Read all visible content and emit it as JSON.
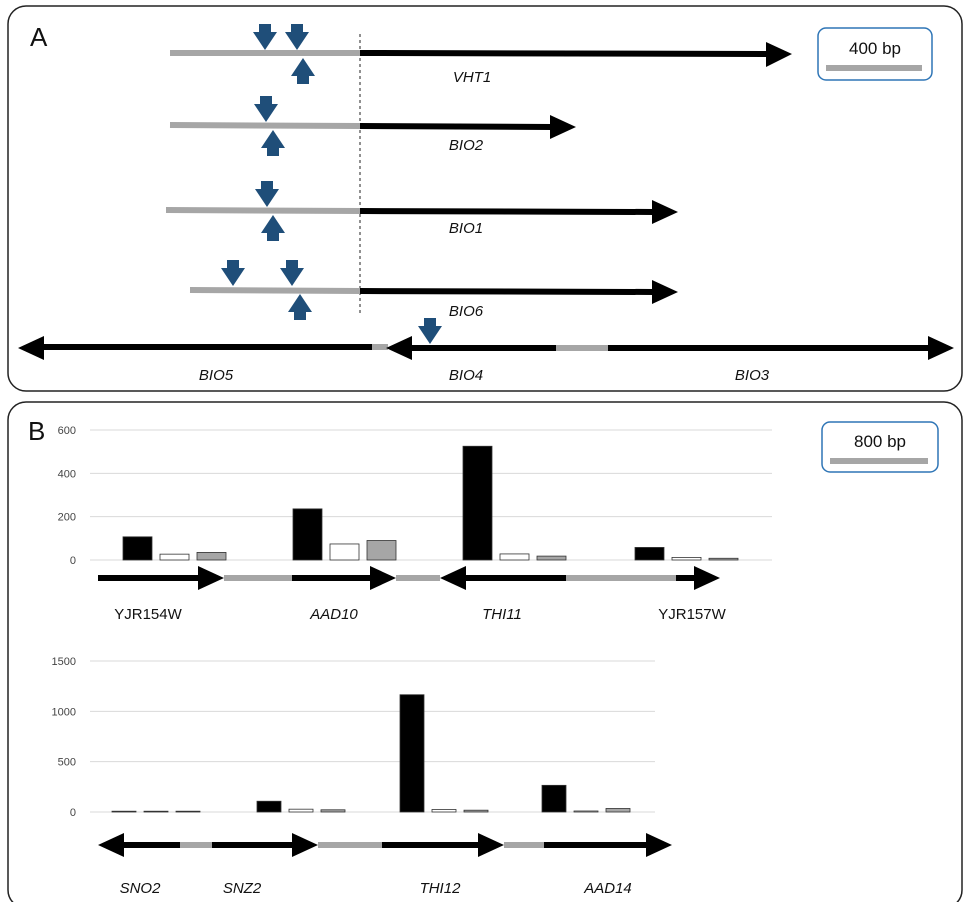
{
  "panel_a": {
    "letter": "A",
    "scale_label": "400 bp",
    "gene_labels": {
      "vht1": "VHT1",
      "bio2": "BIO2",
      "bio1": "BIO1",
      "bio6": "BIO6",
      "bio5": "BIO5",
      "bio4": "BIO4",
      "bio3": "BIO3"
    }
  },
  "panel_b": {
    "letter": "B",
    "scale_label": "800 bp",
    "gene_labels": {
      "yjr154w": "YJR154W",
      "aad10": "AAD10",
      "thi11": "THI11",
      "yjr157w": "YJR157W",
      "sno2": "SNO2",
      "snz2": "SNZ2",
      "thi12": "THI12",
      "aad14": "AAD14"
    }
  },
  "chart_data": [
    {
      "type": "bar",
      "ylim": [
        0,
        600
      ],
      "yticks": [
        0,
        200,
        400,
        600
      ],
      "grid": true,
      "series_colors": [
        "#000000",
        "#ffffff",
        "#a6a6a6"
      ],
      "groups": [
        {
          "values": [
            107,
            27,
            35
          ]
        },
        {
          "values": [
            236,
            74,
            90
          ]
        },
        {
          "values": [
            525,
            28,
            18
          ]
        },
        {
          "values": [
            58,
            12,
            8
          ]
        }
      ]
    },
    {
      "type": "bar",
      "ylim": [
        0,
        1500
      ],
      "yticks": [
        0,
        500,
        1000,
        1500
      ],
      "grid": true,
      "series_colors": [
        "#000000",
        "#ffffff",
        "#a6a6a6"
      ],
      "groups": [
        {
          "values": [
            0,
            0,
            8
          ]
        },
        {
          "values": [
            107,
            28,
            22
          ]
        },
        {
          "values": [
            1165,
            25,
            18
          ]
        },
        {
          "values": [
            265,
            10,
            35
          ]
        }
      ]
    }
  ]
}
